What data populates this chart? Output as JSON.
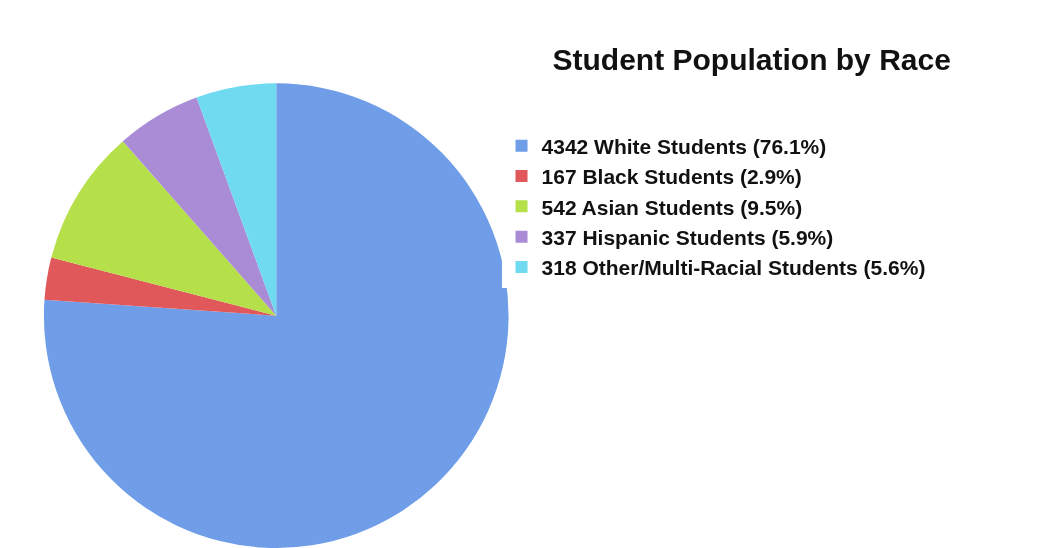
{
  "chart_data": {
    "type": "pie",
    "title": "Student Population by Race",
    "categories": [
      "4342 White Students (76.1%)",
      "167 Black Students (2.9%)",
      "542 Asian Students (9.5%)",
      "337 Hispanic Students (5.9%)",
      "318 Other/Multi-Racial Students (5.6%)"
    ],
    "values": [
      4342,
      167,
      542,
      337,
      318
    ],
    "colors": [
      "#6f9de8",
      "#e0585a",
      "#b5e04a",
      "#a98bd6",
      "#6fdaf0"
    ],
    "legend": "right"
  }
}
